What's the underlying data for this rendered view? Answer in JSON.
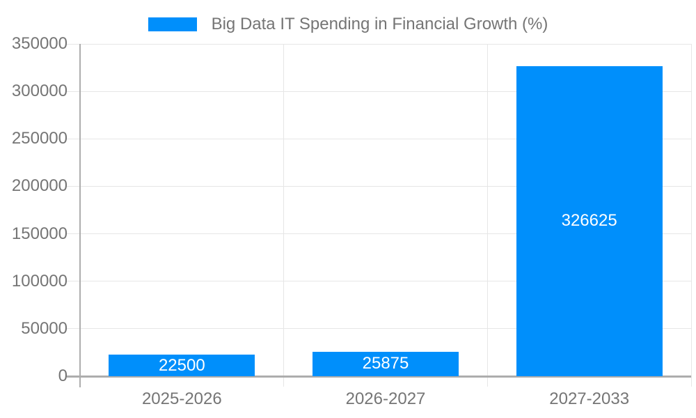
{
  "chart_data": {
    "type": "bar",
    "title": "Big Data IT Spending in Financial Growth (%)",
    "categories": [
      "2025-2026",
      "2026-2027",
      "2027-2033"
    ],
    "values": [
      22500,
      25875,
      326625
    ],
    "bar_value_labels": [
      "22500",
      "25875",
      "326625"
    ],
    "xlabel": "",
    "ylabel": "",
    "ylim": [
      0,
      350000
    ],
    "ytick_interval": 50000,
    "ytick_labels": [
      "350000",
      "300000",
      "250000",
      "200000",
      "150000",
      "100000",
      "50000",
      "0"
    ],
    "grid": true,
    "legend_position": "top",
    "colors": {
      "bar": "#008FFB",
      "title_text": "#757575",
      "axis_text": "#757575",
      "value_label_text": "#FFFFFF",
      "gridline": "#E6E6E6",
      "axis_line": "#ADADAD",
      "background": "#FFFFFF"
    }
  }
}
